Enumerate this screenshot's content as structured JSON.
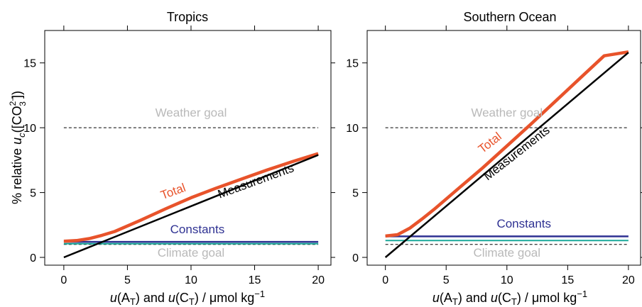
{
  "colors": {
    "total": "#e8532b",
    "measurements": "#000000",
    "constants": "#2e3192",
    "teal": "#1aa99a",
    "goal_line": "#000000",
    "goal_text": "#b9b9b9"
  },
  "chart_data": [
    {
      "type": "line",
      "title": "Tropics",
      "xlabel_parts": {
        "u1": "u",
        "A": "(A",
        "T1": "T",
        "mid": ") and ",
        "u2": "u",
        "C": "(C",
        "T2": "T",
        "units": ") / μmol kg",
        "exp": "−1"
      },
      "ylabel_parts": {
        "prefix": "% relative ",
        "u": "u",
        "sub": "c",
        "open": "([CO",
        "sub3": "3",
        "sup": "2−",
        "close": "])"
      },
      "xlim": [
        -1.5,
        21
      ],
      "ylim": [
        -0.6,
        17.5
      ],
      "xticks": [
        0,
        5,
        10,
        15,
        20
      ],
      "yticks": [
        0,
        5,
        10,
        15
      ],
      "grid": false,
      "series": [
        {
          "name": "Total",
          "color_key": "total",
          "width": 4.5,
          "x": [
            0,
            1,
            2,
            3,
            4,
            6,
            8,
            10,
            12,
            14,
            16,
            18,
            20
          ],
          "y": [
            1.25,
            1.3,
            1.45,
            1.7,
            2.0,
            2.85,
            3.75,
            4.6,
            5.35,
            6.05,
            6.75,
            7.4,
            8.0
          ]
        },
        {
          "name": "Measurements",
          "color_key": "measurements",
          "width": 2.5,
          "x": [
            0,
            20
          ],
          "y": [
            0.0,
            7.9
          ]
        },
        {
          "name": "Constants",
          "color_key": "constants",
          "width": 2.5,
          "x": [
            0,
            20
          ],
          "y": [
            1.2,
            1.2
          ]
        },
        {
          "name": "",
          "color_key": "teal",
          "width": 2,
          "x": [
            0,
            20
          ],
          "y": [
            1.05,
            1.05
          ]
        }
      ],
      "hlines": [
        {
          "label": "Weather goal",
          "y": 10,
          "x": [
            0,
            20
          ]
        },
        {
          "label": "Climate goal",
          "y": 1,
          "x": [
            0,
            20
          ]
        }
      ],
      "annotations": [
        {
          "text": "Weather goal",
          "x": 10,
          "y": 10.85,
          "rotate": 0,
          "color_key": "goal_text",
          "anchor": "middle"
        },
        {
          "text": "Climate goal",
          "x": 10,
          "y": 0.05,
          "rotate": 0,
          "color_key": "goal_text",
          "anchor": "middle"
        },
        {
          "text": "Total",
          "x": 8.7,
          "y": 4.8,
          "rotate": -20,
          "color_key": "total",
          "anchor": "middle"
        },
        {
          "text": "Measurements",
          "x": 15.2,
          "y": 5.6,
          "rotate": -20,
          "color_key": "measurements",
          "anchor": "middle"
        },
        {
          "text": "Constants",
          "x": 10.5,
          "y": 1.85,
          "rotate": 0,
          "color_key": "constants",
          "anchor": "middle"
        }
      ]
    },
    {
      "type": "line",
      "title": "Southern Ocean",
      "xlabel_parts": {
        "u1": "u",
        "A": "(A",
        "T1": "T",
        "mid": ") and ",
        "u2": "u",
        "C": "(C",
        "T2": "T",
        "units": ") / μmol kg",
        "exp": "−1"
      },
      "ylabel_parts": null,
      "xlim": [
        -1.5,
        21
      ],
      "ylim": [
        -0.6,
        17.5
      ],
      "xticks": [
        0,
        5,
        10,
        15,
        20
      ],
      "yticks": [
        0,
        5,
        10,
        15
      ],
      "grid": false,
      "series": [
        {
          "name": "Total",
          "color_key": "total",
          "width": 4.5,
          "x": [
            0,
            1,
            2,
            3,
            4,
            6,
            8,
            10,
            12,
            14,
            16,
            18,
            20
          ],
          "y": [
            1.65,
            1.75,
            2.25,
            2.95,
            3.7,
            5.3,
            6.9,
            8.6,
            10.3,
            12.05,
            13.8,
            15.55,
            15.85
          ]
        },
        {
          "name": "Measurements",
          "color_key": "measurements",
          "width": 2.5,
          "x": [
            0,
            20
          ],
          "y": [
            0.0,
            15.8
          ]
        },
        {
          "name": "Constants",
          "color_key": "constants",
          "width": 2.5,
          "x": [
            0,
            20
          ],
          "y": [
            1.62,
            1.62
          ]
        },
        {
          "name": "",
          "color_key": "teal",
          "width": 2,
          "x": [
            0,
            20
          ],
          "y": [
            1.3,
            1.3
          ]
        }
      ],
      "hlines": [
        {
          "label": "Weather goal",
          "y": 10,
          "x": [
            0,
            20
          ]
        },
        {
          "label": "Climate goal",
          "y": 1,
          "x": [
            0,
            20
          ]
        }
      ],
      "annotations": [
        {
          "text": "Weather goal",
          "x": 10,
          "y": 10.85,
          "rotate": 0,
          "color_key": "goal_text",
          "anchor": "middle"
        },
        {
          "text": "Climate goal",
          "x": 10,
          "y": 0.05,
          "rotate": 0,
          "color_key": "goal_text",
          "anchor": "middle"
        },
        {
          "text": "Total",
          "x": 8.8,
          "y": 8.6,
          "rotate": -38,
          "color_key": "total",
          "anchor": "middle"
        },
        {
          "text": "Measurements",
          "x": 11.0,
          "y": 7.8,
          "rotate": -38,
          "color_key": "measurements",
          "anchor": "middle"
        },
        {
          "text": "Constants",
          "x": 11.4,
          "y": 2.3,
          "rotate": 0,
          "color_key": "constants",
          "anchor": "middle"
        }
      ]
    }
  ]
}
